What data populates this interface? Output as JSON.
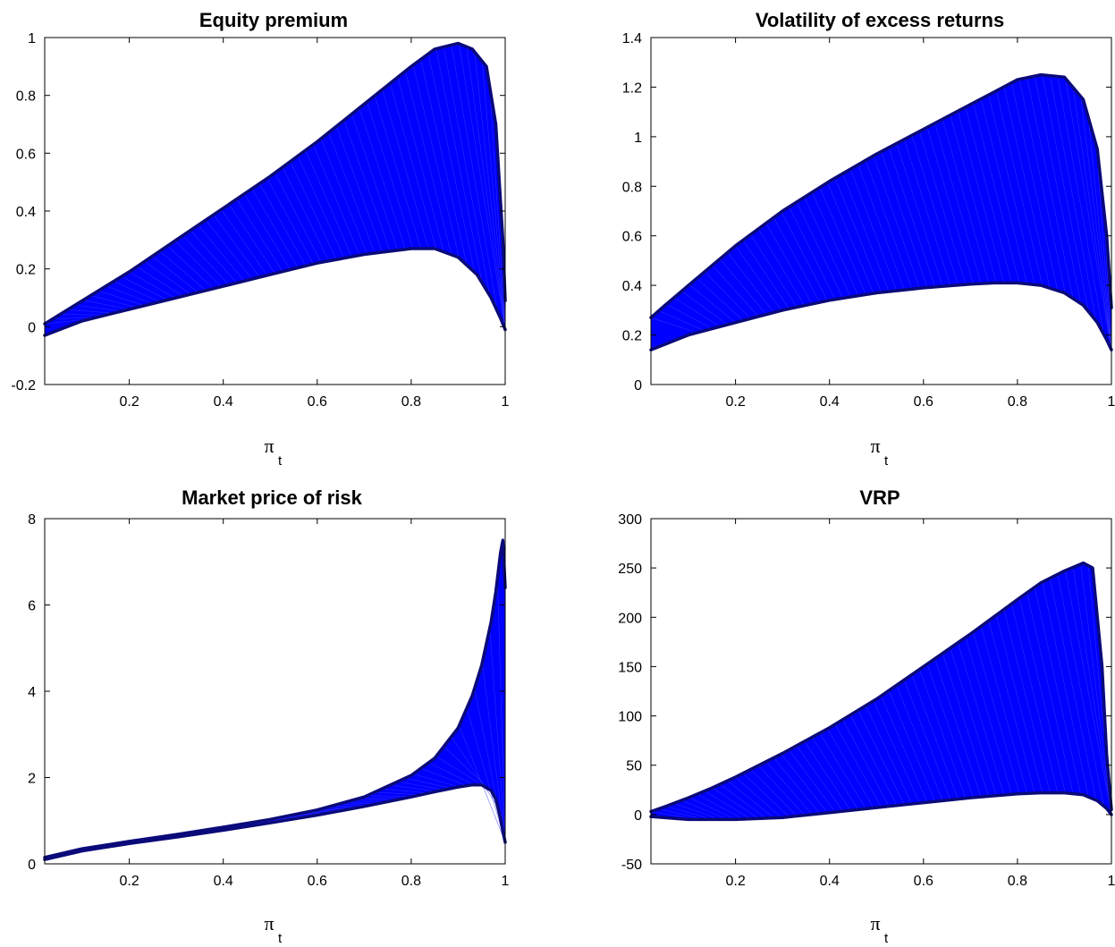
{
  "chart_data": [
    {
      "type": "area",
      "title": "Equity premium",
      "xlabel": "π",
      "xlabel_sub": "t",
      "ylabel": "",
      "xlim": [
        0.02,
        1.0
      ],
      "ylim": [
        -0.2,
        1.0
      ],
      "xticks": [
        0.2,
        0.4,
        0.6,
        0.8,
        1.0
      ],
      "xtick_labels": [
        "0.2",
        "0.4",
        "0.6",
        "0.8",
        "1"
      ],
      "yticks": [
        -0.2,
        0,
        0.2,
        0.4,
        0.6,
        0.8,
        1.0
      ],
      "ytick_labels": [
        "-0.2",
        "0",
        "0.2",
        "0.4",
        "0.6",
        "0.8",
        "1"
      ],
      "grid": false,
      "fill_color": "#0000ff",
      "edge_color": "#0a0a7a",
      "series": [
        {
          "role": "upper",
          "x": [
            0.02,
            0.05,
            0.1,
            0.2,
            0.3,
            0.4,
            0.5,
            0.6,
            0.7,
            0.8,
            0.85,
            0.9,
            0.93,
            0.96,
            0.98,
            0.995,
            1.0
          ],
          "y": [
            0.01,
            0.04,
            0.09,
            0.19,
            0.3,
            0.41,
            0.52,
            0.64,
            0.77,
            0.9,
            0.96,
            0.98,
            0.96,
            0.9,
            0.7,
            0.3,
            0.09
          ]
        },
        {
          "role": "lower",
          "x": [
            0.02,
            0.1,
            0.2,
            0.3,
            0.4,
            0.5,
            0.6,
            0.7,
            0.8,
            0.85,
            0.9,
            0.94,
            0.97,
            0.99,
            1.0
          ],
          "y": [
            -0.03,
            0.02,
            0.06,
            0.1,
            0.14,
            0.18,
            0.22,
            0.25,
            0.27,
            0.27,
            0.24,
            0.18,
            0.1,
            0.03,
            -0.01
          ]
        }
      ]
    },
    {
      "type": "area",
      "title": "Volatility of excess returns",
      "xlabel": "π",
      "xlabel_sub": "t",
      "ylabel": "",
      "xlim": [
        0.02,
        1.0
      ],
      "ylim": [
        0,
        1.4
      ],
      "xticks": [
        0.2,
        0.4,
        0.6,
        0.8,
        1.0
      ],
      "xtick_labels": [
        "0.2",
        "0.4",
        "0.6",
        "0.8",
        "1"
      ],
      "yticks": [
        0,
        0.2,
        0.4,
        0.6,
        0.8,
        1.0,
        1.2,
        1.4
      ],
      "ytick_labels": [
        "0",
        "0.2",
        "0.4",
        "0.6",
        "0.8",
        "1",
        "1.2",
        "1.4"
      ],
      "grid": false,
      "fill_color": "#0000ff",
      "edge_color": "#0a0a7a",
      "series": [
        {
          "role": "upper",
          "x": [
            0.02,
            0.05,
            0.1,
            0.2,
            0.3,
            0.4,
            0.5,
            0.6,
            0.7,
            0.75,
            0.8,
            0.85,
            0.9,
            0.94,
            0.97,
            0.99,
            1.0
          ],
          "y": [
            0.27,
            0.32,
            0.4,
            0.56,
            0.7,
            0.82,
            0.93,
            1.03,
            1.13,
            1.18,
            1.23,
            1.25,
            1.24,
            1.15,
            0.95,
            0.6,
            0.31
          ]
        },
        {
          "role": "lower",
          "x": [
            0.02,
            0.1,
            0.2,
            0.3,
            0.4,
            0.5,
            0.6,
            0.7,
            0.75,
            0.8,
            0.85,
            0.9,
            0.94,
            0.97,
            0.99,
            1.0
          ],
          "y": [
            0.14,
            0.2,
            0.25,
            0.3,
            0.34,
            0.37,
            0.39,
            0.405,
            0.41,
            0.41,
            0.4,
            0.37,
            0.32,
            0.25,
            0.18,
            0.14
          ]
        }
      ]
    },
    {
      "type": "area",
      "title": "Market price of risk",
      "xlabel": "π",
      "xlabel_sub": "t",
      "ylabel": "",
      "xlim": [
        0.02,
        1.0
      ],
      "ylim": [
        0,
        8
      ],
      "xticks": [
        0.2,
        0.4,
        0.6,
        0.8,
        1.0
      ],
      "xtick_labels": [
        "0.2",
        "0.4",
        "0.6",
        "0.8",
        "1"
      ],
      "yticks": [
        0,
        2,
        4,
        6,
        8
      ],
      "ytick_labels": [
        "0",
        "2",
        "4",
        "6",
        "8"
      ],
      "grid": false,
      "fill_color": "#0000ff",
      "edge_color": "#0a0a7a",
      "series": [
        {
          "role": "upper",
          "x": [
            0.02,
            0.1,
            0.2,
            0.3,
            0.4,
            0.5,
            0.6,
            0.7,
            0.8,
            0.85,
            0.9,
            0.93,
            0.95,
            0.97,
            0.98,
            0.99,
            0.995,
            1.0
          ],
          "y": [
            0.15,
            0.35,
            0.52,
            0.68,
            0.85,
            1.03,
            1.25,
            1.55,
            2.05,
            2.45,
            3.15,
            3.9,
            4.6,
            5.6,
            6.3,
            7.2,
            7.5,
            6.4
          ]
        },
        {
          "role": "lower",
          "x": [
            0.02,
            0.1,
            0.2,
            0.3,
            0.4,
            0.5,
            0.6,
            0.7,
            0.8,
            0.85,
            0.9,
            0.93,
            0.95,
            0.97,
            0.98,
            0.99,
            0.995,
            1.0
          ],
          "y": [
            0.1,
            0.3,
            0.47,
            0.62,
            0.78,
            0.95,
            1.13,
            1.33,
            1.55,
            1.67,
            1.78,
            1.83,
            1.83,
            1.7,
            1.5,
            1.05,
            0.75,
            0.5
          ]
        }
      ]
    },
    {
      "type": "area",
      "title": "VRP",
      "xlabel": "π",
      "xlabel_sub": "t",
      "ylabel": "",
      "xlim": [
        0.02,
        1.0
      ],
      "ylim": [
        -50,
        300
      ],
      "xticks": [
        0.2,
        0.4,
        0.6,
        0.8,
        1.0
      ],
      "xtick_labels": [
        "0.2",
        "0.4",
        "0.6",
        "0.8",
        "1"
      ],
      "yticks": [
        -50,
        0,
        50,
        100,
        150,
        200,
        250,
        300
      ],
      "ytick_labels": [
        "-50",
        "0",
        "50",
        "100",
        "150",
        "200",
        "250",
        "300"
      ],
      "grid": false,
      "fill_color": "#0000ff",
      "edge_color": "#0a0a7a",
      "series": [
        {
          "role": "upper",
          "x": [
            0.02,
            0.05,
            0.1,
            0.15,
            0.2,
            0.3,
            0.4,
            0.5,
            0.6,
            0.7,
            0.8,
            0.85,
            0.9,
            0.94,
            0.96,
            0.98,
            0.99,
            1.0
          ],
          "y": [
            3,
            8,
            17,
            27,
            38,
            62,
            88,
            117,
            150,
            183,
            218,
            235,
            247,
            255,
            250,
            150,
            60,
            5
          ]
        },
        {
          "role": "lower",
          "x": [
            0.02,
            0.1,
            0.2,
            0.3,
            0.4,
            0.5,
            0.6,
            0.7,
            0.8,
            0.85,
            0.9,
            0.94,
            0.97,
            0.99,
            1.0
          ],
          "y": [
            -2,
            -5,
            -5,
            -3,
            2,
            7,
            12,
            17,
            21,
            22,
            22,
            20,
            14,
            6,
            0
          ]
        }
      ]
    }
  ]
}
